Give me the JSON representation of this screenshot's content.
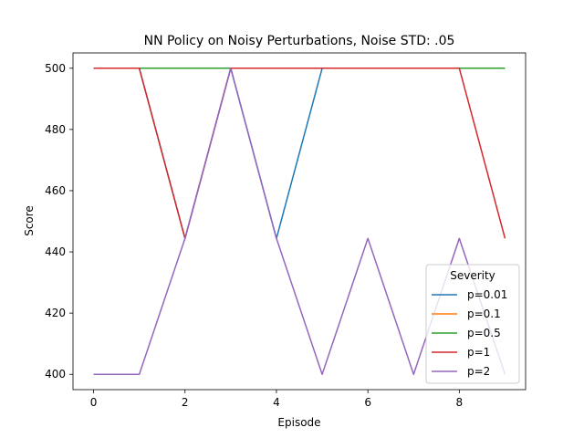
{
  "chart_data": {
    "type": "line",
    "title": "NN Policy on Noisy Perturbations, Noise STD: .05",
    "xlabel": "Episode",
    "ylabel": "Score",
    "xlim": [
      -0.45,
      9.45
    ],
    "ylim": [
      395,
      505
    ],
    "x_ticks": [
      0,
      2,
      4,
      6,
      8
    ],
    "y_ticks": [
      400,
      420,
      440,
      460,
      480,
      500
    ],
    "grid": false,
    "legend": {
      "title": "Severity",
      "placement": "lower right"
    },
    "x": [
      0,
      1,
      2,
      3,
      4,
      5,
      6,
      7,
      8,
      9
    ],
    "series": [
      {
        "name": "p=0.01",
        "color": "#1f77b4",
        "values": [
          500,
          500,
          444.4,
          500,
          444.4,
          500,
          500,
          500,
          500,
          500
        ]
      },
      {
        "name": "p=0.1",
        "color": "#ff7f0e",
        "values": [
          500,
          500,
          500,
          500,
          500,
          500,
          500,
          500,
          500,
          500
        ]
      },
      {
        "name": "p=0.5",
        "color": "#2ca02c",
        "values": [
          500,
          500,
          500,
          500,
          500,
          500,
          500,
          500,
          500,
          500
        ]
      },
      {
        "name": "p=1",
        "color": "#d62728",
        "values": [
          500,
          500,
          444.4,
          500,
          500,
          500,
          500,
          500,
          500,
          444.4
        ]
      },
      {
        "name": "p=2",
        "color": "#9467bd",
        "values": [
          400,
          400,
          444.4,
          500,
          444.4,
          400,
          444.4,
          400,
          444.4,
          400
        ]
      }
    ]
  }
}
